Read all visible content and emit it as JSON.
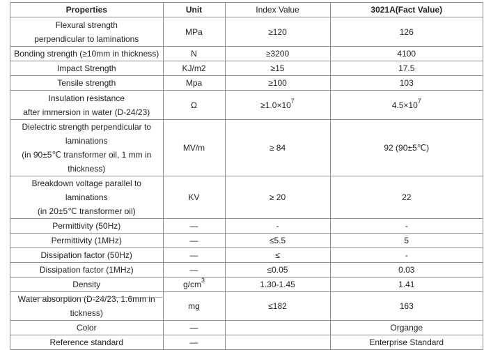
{
  "table": {
    "headers": {
      "property": "Properties",
      "unit": "Unit",
      "index": "Index Value",
      "fact": "3021A(Fact Value)"
    },
    "rows": [
      {
        "p1": "Flexural strength",
        "p2": "perpendicular to laminations",
        "unit": "MPa",
        "index": "≥120",
        "fact": "126"
      },
      {
        "p1": "Bonding strength (≥10mm in thickness)",
        "unit": "N",
        "index": "≥3200",
        "fact": "4100"
      },
      {
        "p1": "Impact Strength",
        "unit": "KJ/m2",
        "index": "≥15",
        "fact": "17.5"
      },
      {
        "p1": "Tensile strength",
        "unit": "Mpa",
        "index": "≥100",
        "fact": "103"
      },
      {
        "p1": "Insulation resistance",
        "p2": "after immersion in water (D-24/23)",
        "unit": "Ω",
        "index": "≥1.0×10",
        "index_sup": "7",
        "fact": "4.5×10",
        "fact_sup": "7"
      },
      {
        "p1": "Dielectric strength perpendicular to laminations",
        "p2": "(in 90±5℃ transformer oil, 1 mm in thickness)",
        "unit": "MV/m",
        "index": "≥ 84",
        "fact": "92 (90±5℃)"
      },
      {
        "p1": "Breakdown voltage parallel to laminations",
        "p2": "(in 20±5℃ transformer oil)",
        "unit": "KV",
        "index": "≥ 20",
        "fact": "22"
      },
      {
        "p1": "Permittivity (50Hz)",
        "unit": "—",
        "index": "-",
        "fact": "-"
      },
      {
        "p1": "Permittivity (1MHz)",
        "unit": "—",
        "index": "≤5.5",
        "fact": "5"
      },
      {
        "p1": "Dissipation factor (50Hz)",
        "unit": "—",
        "index": "≤",
        "fact": "-"
      },
      {
        "p1": "Dissipation factor (1MHz)",
        "unit": "—",
        "index": "≤0.05",
        "fact": "0.03"
      },
      {
        "p1": "Density",
        "unit": "g/cm",
        "unit_sup": "3",
        "index": "1.30-1.45",
        "fact": "1.41"
      },
      {
        "p1": "Water absorption (D-24/23, 1.6mm in tickness)",
        "unit": "mg",
        "index": "≤182",
        "fact": "163"
      },
      {
        "p1": "Color",
        "unit": "—",
        "index": "",
        "fact": "Organge"
      },
      {
        "p1": "Reference standard",
        "unit": "—",
        "index": "",
        "fact": "Enterprise Standard"
      }
    ]
  }
}
